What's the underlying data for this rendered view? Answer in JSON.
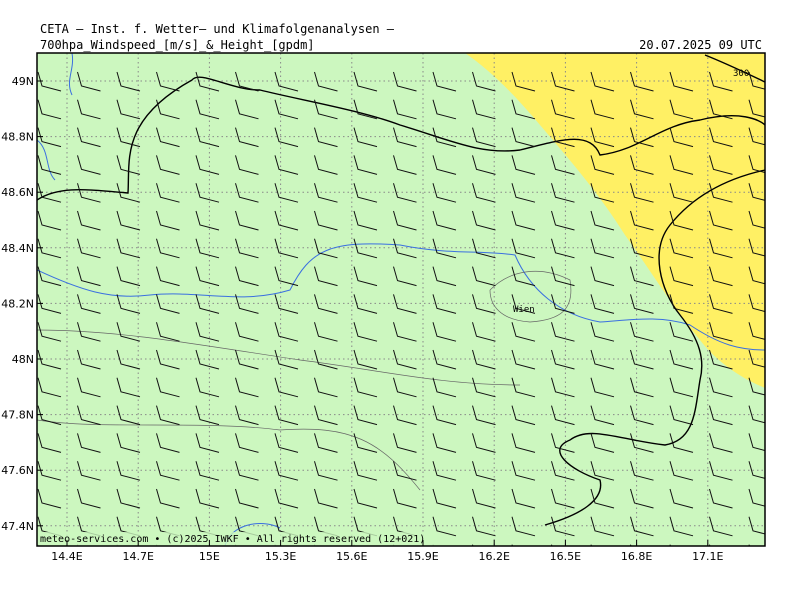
{
  "header": {
    "line1": "CETA — Inst. f. Wetter— und Klimafolgenanalysen —",
    "field": "700hpa_Windspeed_[m/s]_&_Height_[gpdm]",
    "valid": "20.07.2025 09 UTC"
  },
  "axes": {
    "lon_labels": [
      "14.4E",
      "14.7E",
      "15E",
      "15.3E",
      "15.6E",
      "15.9E",
      "16.2E",
      "16.5E",
      "16.8E",
      "17.1E"
    ],
    "lat_labels": [
      "49N",
      "48.8N",
      "48.6N",
      "48.4N",
      "48.2N",
      "48N",
      "47.8N",
      "47.6N",
      "47.4N"
    ]
  },
  "map": {
    "city": "Wien",
    "contour_label": "300"
  },
  "footer": "meteo-services.com • (c)2025 IWKF • All rights reserved (12+021)"
}
